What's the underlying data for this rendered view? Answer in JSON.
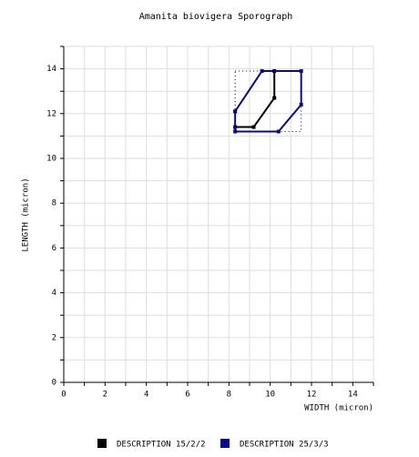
{
  "chart_data": {
    "type": "line",
    "title": "Amanita biovigera Sporograph",
    "xlabel": "WIDTH (micron)",
    "ylabel": "LENGTH (micron)",
    "xlim": [
      0,
      15
    ],
    "ylim": [
      0,
      15
    ],
    "xticks": [
      0,
      2,
      4,
      6,
      8,
      10,
      12,
      14
    ],
    "yticks": [
      0,
      2,
      4,
      6,
      8,
      10,
      12,
      14
    ],
    "minor_xticks": [
      1,
      3,
      5,
      7,
      9,
      11,
      13,
      15
    ],
    "minor_yticks": [
      1,
      3,
      5,
      7,
      9,
      11,
      13,
      15
    ],
    "grid": true,
    "legend": "bottom",
    "series": [
      {
        "color": "#000000",
        "dotted": true,
        "x": [
          8.3,
          11.5,
          11.5,
          8.3,
          8.3
        ],
        "y": [
          13.9,
          13.9,
          11.2,
          11.2,
          13.9
        ]
      },
      {
        "name": "DESCRIPTION 15/2/2",
        "color": "#000000",
        "x": [
          8.3,
          9.2,
          10.2,
          10.2
        ],
        "y": [
          11.4,
          11.4,
          12.7,
          13.9
        ]
      },
      {
        "name": "DESCRIPTION 25/3/3",
        "color": "#0a0a8c",
        "x": [
          8.3,
          9.6,
          11.5,
          11.5,
          10.4,
          8.3,
          8.3
        ],
        "y": [
          12.1,
          13.9,
          13.9,
          12.4,
          11.2,
          11.2,
          12.1
        ]
      }
    ]
  }
}
